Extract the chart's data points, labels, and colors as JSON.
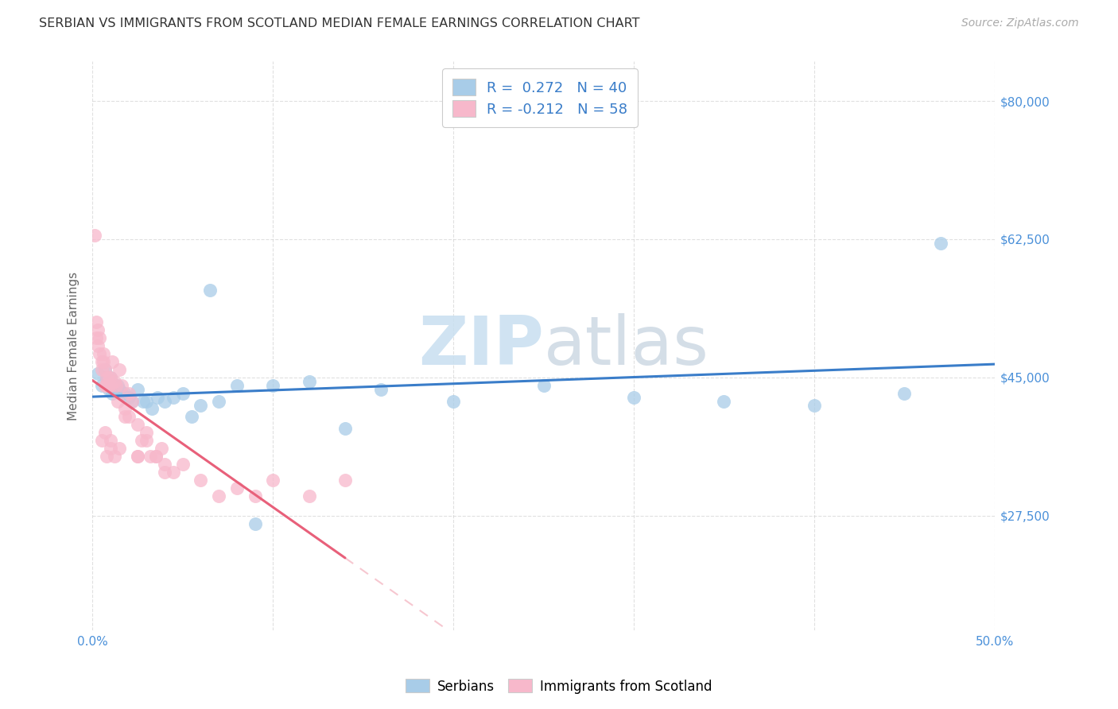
{
  "title": "SERBIAN VS IMMIGRANTS FROM SCOTLAND MEDIAN FEMALE EARNINGS CORRELATION CHART",
  "source": "Source: ZipAtlas.com",
  "ylabel": "Median Female Earnings",
  "xlim": [
    0.0,
    0.5
  ],
  "ylim": [
    13000,
    85000
  ],
  "ytick_positions": [
    27500,
    45000,
    62500,
    80000
  ],
  "ytick_labels": [
    "$27,500",
    "$45,000",
    "$62,500",
    "$80,000"
  ],
  "xtick_positions": [
    0.0,
    0.1,
    0.2,
    0.3,
    0.4,
    0.5
  ],
  "xtick_labels": [
    "0.0%",
    "",
    "",
    "",
    "",
    "50.0%"
  ],
  "legend_labels": [
    "Serbians",
    "Immigrants from Scotland"
  ],
  "blue_R": "0.272",
  "blue_N": "40",
  "pink_R": "-0.212",
  "pink_N": "58",
  "blue_scatter_color": "#a8cce8",
  "pink_scatter_color": "#f7b8cb",
  "blue_line_color": "#3a7dc9",
  "pink_line_color": "#e8607a",
  "background_color": "#ffffff",
  "grid_color": "#cccccc",
  "title_color": "#333333",
  "ylabel_color": "#666666",
  "tick_label_color": "#4a90d9",
  "legend_text_color_black": "#333333",
  "legend_text_color_blue": "#3a7dc9",
  "watermark_color": "#c8dff0",
  "blue_points_x": [
    0.003,
    0.005,
    0.007,
    0.008,
    0.009,
    0.01,
    0.011,
    0.012,
    0.013,
    0.014,
    0.015,
    0.016,
    0.018,
    0.02,
    0.022,
    0.025,
    0.028,
    0.03,
    0.033,
    0.036,
    0.04,
    0.045,
    0.05,
    0.055,
    0.06,
    0.065,
    0.07,
    0.08,
    0.09,
    0.1,
    0.12,
    0.14,
    0.16,
    0.2,
    0.25,
    0.3,
    0.35,
    0.4,
    0.45,
    0.47
  ],
  "blue_points_y": [
    45500,
    44000,
    46000,
    45000,
    43500,
    45000,
    43000,
    44000,
    43500,
    44000,
    43500,
    43000,
    43000,
    42500,
    42000,
    43500,
    42000,
    42000,
    41000,
    42500,
    42000,
    42500,
    43000,
    40000,
    41500,
    56000,
    42000,
    44000,
    26500,
    44000,
    44500,
    38500,
    43500,
    42000,
    44000,
    42500,
    42000,
    41500,
    43000,
    62000
  ],
  "pink_points_x": [
    0.001,
    0.002,
    0.002,
    0.003,
    0.003,
    0.004,
    0.004,
    0.005,
    0.005,
    0.006,
    0.006,
    0.007,
    0.007,
    0.008,
    0.008,
    0.009,
    0.009,
    0.01,
    0.01,
    0.011,
    0.012,
    0.013,
    0.014,
    0.015,
    0.016,
    0.018,
    0.02,
    0.022,
    0.025,
    0.027,
    0.03,
    0.032,
    0.035,
    0.038,
    0.04,
    0.045,
    0.05,
    0.06,
    0.07,
    0.08,
    0.09,
    0.1,
    0.12,
    0.14,
    0.005,
    0.007,
    0.012,
    0.018,
    0.025,
    0.03,
    0.035,
    0.04,
    0.01,
    0.015,
    0.02,
    0.025,
    0.008,
    0.01
  ],
  "pink_points_y": [
    63000,
    50000,
    52000,
    49000,
    51000,
    50000,
    48000,
    46000,
    47000,
    48000,
    47000,
    46000,
    44000,
    45000,
    44000,
    45000,
    44000,
    44000,
    45000,
    47000,
    44500,
    44000,
    42000,
    46000,
    44000,
    41000,
    43000,
    42000,
    39000,
    37000,
    38000,
    35000,
    35000,
    36000,
    34000,
    33000,
    34000,
    32000,
    30000,
    31000,
    30000,
    32000,
    30000,
    32000,
    37000,
    38000,
    35000,
    40000,
    35000,
    37000,
    35000,
    33000,
    37000,
    36000,
    40000,
    35000,
    35000,
    36000
  ]
}
